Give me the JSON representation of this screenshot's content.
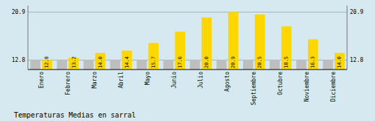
{
  "chart_data": {
    "type": "bar",
    "title": "Temperaturas Medias en sarral",
    "categories": [
      "Enero",
      "Febrero",
      "Marzo",
      "Abril",
      "Mayo",
      "Junio",
      "Julio",
      "Agosto",
      "Septiembre",
      "Octubre",
      "Noviembre",
      "Diciembre"
    ],
    "series": [
      {
        "color": "#BEBEBE",
        "values": [
          12.8,
          12.8,
          12.8,
          12.8,
          12.8,
          12.8,
          12.8,
          12.8,
          12.8,
          12.8,
          12.8,
          12.8
        ]
      },
      {
        "color": "#FFD700",
        "values": [
          12.8,
          13.2,
          14.0,
          14.4,
          15.7,
          17.6,
          20.0,
          20.9,
          20.5,
          18.5,
          16.3,
          14.0
        ],
        "value_labels": [
          "12.8",
          "13.2",
          "14.0",
          "14.4",
          "15.7",
          "17.6",
          "20.0",
          "20.9",
          "20.5",
          "18.5",
          "16.3",
          "14.0"
        ]
      }
    ],
    "ylim": [
      11.2,
      22.0
    ],
    "yticks": [
      12.8,
      20.9
    ],
    "grid": true,
    "data_labels": true
  }
}
